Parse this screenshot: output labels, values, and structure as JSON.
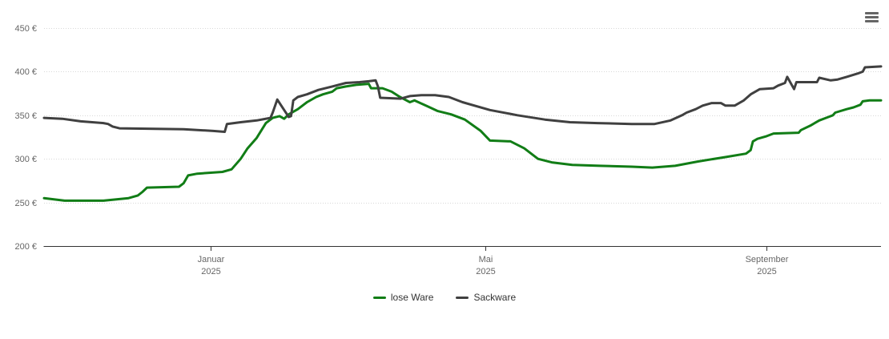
{
  "icons": {
    "menu": "hamburger-icon"
  },
  "legend": {
    "items": [
      "lose Ware",
      "Sackware"
    ]
  },
  "chart_data": {
    "type": "line",
    "title": "",
    "x_type": "datetime",
    "x_domain": [
      "2024-10-20",
      "2025-10-21"
    ],
    "y_domain": [
      200,
      450
    ],
    "y_ticks": [
      200,
      250,
      300,
      350,
      400,
      450
    ],
    "y_tick_suffix": " €",
    "grid": "horizontal dotted",
    "legend_position": "bottom-center",
    "x_ticks": [
      {
        "date": "2025-01-01",
        "label": "Januar",
        "sublabel": "2025"
      },
      {
        "date": "2025-05-01",
        "label": "Mai",
        "sublabel": "2025"
      },
      {
        "date": "2025-09-01",
        "label": "September",
        "sublabel": "2025"
      }
    ],
    "colors": {
      "grid": "#d8d8d8",
      "axis_line": "#333333",
      "axis_label": "#666666",
      "menu_icon": "#666666",
      "background": "#ffffff"
    },
    "series": [
      {
        "name": "lose Ware",
        "color": "#117d16",
        "points": [
          [
            "2024-10-20",
            255
          ],
          [
            "2024-10-29",
            252
          ],
          [
            "2024-11-15",
            252
          ],
          [
            "2024-11-26",
            255
          ],
          [
            "2024-11-30",
            258
          ],
          [
            "2024-12-02",
            262
          ],
          [
            "2024-12-04",
            267
          ],
          [
            "2024-12-18",
            268
          ],
          [
            "2024-12-20",
            272
          ],
          [
            "2024-12-22",
            281
          ],
          [
            "2024-12-26",
            283
          ],
          [
            "2025-01-06",
            285
          ],
          [
            "2025-01-10",
            288
          ],
          [
            "2025-01-14",
            300
          ],
          [
            "2025-01-17",
            312
          ],
          [
            "2025-01-21",
            324
          ],
          [
            "2025-01-25",
            341
          ],
          [
            "2025-01-28",
            347
          ],
          [
            "2025-01-31",
            349
          ],
          [
            "2025-02-02",
            346
          ],
          [
            "2025-02-04",
            351
          ],
          [
            "2025-02-08",
            357
          ],
          [
            "2025-02-12",
            365
          ],
          [
            "2025-02-16",
            371
          ],
          [
            "2025-02-19",
            374
          ],
          [
            "2025-02-23",
            377
          ],
          [
            "2025-02-25",
            381
          ],
          [
            "2025-03-01",
            383
          ],
          [
            "2025-03-06",
            385
          ],
          [
            "2025-03-11",
            386
          ],
          [
            "2025-03-12",
            381
          ],
          [
            "2025-03-17",
            381
          ],
          [
            "2025-03-21",
            377
          ],
          [
            "2025-03-24",
            372
          ],
          [
            "2025-03-26",
            369
          ],
          [
            "2025-03-29",
            365
          ],
          [
            "2025-03-31",
            367
          ],
          [
            "2025-04-05",
            361
          ],
          [
            "2025-04-10",
            355
          ],
          [
            "2025-04-16",
            351
          ],
          [
            "2025-04-22",
            345
          ],
          [
            "2025-04-29",
            332
          ],
          [
            "2025-05-03",
            321
          ],
          [
            "2025-05-12",
            320
          ],
          [
            "2025-05-18",
            312
          ],
          [
            "2025-05-24",
            300
          ],
          [
            "2025-05-30",
            296
          ],
          [
            "2025-06-08",
            293
          ],
          [
            "2025-06-20",
            292
          ],
          [
            "2025-07-04",
            291
          ],
          [
            "2025-07-13",
            290
          ],
          [
            "2025-07-23",
            292
          ],
          [
            "2025-08-02",
            297
          ],
          [
            "2025-08-14",
            302
          ],
          [
            "2025-08-23",
            306
          ],
          [
            "2025-08-25",
            310
          ],
          [
            "2025-08-26",
            320
          ],
          [
            "2025-08-28",
            323
          ],
          [
            "2025-09-01",
            326
          ],
          [
            "2025-09-04",
            329
          ],
          [
            "2025-09-15",
            330
          ],
          [
            "2025-09-16",
            333
          ],
          [
            "2025-09-20",
            338
          ],
          [
            "2025-09-24",
            344
          ],
          [
            "2025-09-28",
            348
          ],
          [
            "2025-09-30",
            350
          ],
          [
            "2025-10-01",
            353
          ],
          [
            "2025-10-06",
            357
          ],
          [
            "2025-10-09",
            359
          ],
          [
            "2025-10-12",
            362
          ],
          [
            "2025-10-13",
            366
          ],
          [
            "2025-10-16",
            367
          ],
          [
            "2025-10-21",
            367
          ]
        ]
      },
      {
        "name": "Sackware",
        "color": "#404040",
        "points": [
          [
            "2024-10-20",
            347
          ],
          [
            "2024-10-28",
            346
          ],
          [
            "2024-11-05",
            343
          ],
          [
            "2024-11-15",
            341
          ],
          [
            "2024-11-17",
            340
          ],
          [
            "2024-11-19",
            337
          ],
          [
            "2024-11-22",
            335
          ],
          [
            "2024-12-20",
            334
          ],
          [
            "2025-01-02",
            332
          ],
          [
            "2025-01-07",
            331
          ],
          [
            "2025-01-08",
            340
          ],
          [
            "2025-01-14",
            342
          ],
          [
            "2025-01-21",
            344
          ],
          [
            "2025-01-27",
            347
          ],
          [
            "2025-01-28",
            353
          ],
          [
            "2025-01-30",
            368
          ],
          [
            "2025-02-02",
            356
          ],
          [
            "2025-02-04",
            348
          ],
          [
            "2025-02-05",
            349
          ],
          [
            "2025-02-06",
            367
          ],
          [
            "2025-02-08",
            371
          ],
          [
            "2025-02-12",
            374
          ],
          [
            "2025-02-17",
            379
          ],
          [
            "2025-02-23",
            383
          ],
          [
            "2025-03-01",
            387
          ],
          [
            "2025-03-07",
            388
          ],
          [
            "2025-03-11",
            389
          ],
          [
            "2025-03-14",
            390
          ],
          [
            "2025-03-15",
            383
          ],
          [
            "2025-03-16",
            370
          ],
          [
            "2025-03-25",
            369
          ],
          [
            "2025-03-29",
            372
          ],
          [
            "2025-04-03",
            373
          ],
          [
            "2025-04-09",
            373
          ],
          [
            "2025-04-15",
            371
          ],
          [
            "2025-04-21",
            365
          ],
          [
            "2025-05-03",
            356
          ],
          [
            "2025-05-15",
            350
          ],
          [
            "2025-05-27",
            345
          ],
          [
            "2025-06-07",
            342
          ],
          [
            "2025-06-19",
            341
          ],
          [
            "2025-07-04",
            340
          ],
          [
            "2025-07-14",
            340
          ],
          [
            "2025-07-21",
            344
          ],
          [
            "2025-07-26",
            350
          ],
          [
            "2025-07-28",
            353
          ],
          [
            "2025-08-01",
            357
          ],
          [
            "2025-08-04",
            361
          ],
          [
            "2025-08-08",
            364
          ],
          [
            "2025-08-12",
            364
          ],
          [
            "2025-08-14",
            361
          ],
          [
            "2025-08-18",
            361
          ],
          [
            "2025-08-22",
            367
          ],
          [
            "2025-08-25",
            374
          ],
          [
            "2025-08-29",
            380
          ],
          [
            "2025-09-04",
            381
          ],
          [
            "2025-09-06",
            384
          ],
          [
            "2025-09-09",
            387
          ],
          [
            "2025-09-10",
            394
          ],
          [
            "2025-09-13",
            380
          ],
          [
            "2025-09-14",
            388
          ],
          [
            "2025-09-23",
            388
          ],
          [
            "2025-09-24",
            393
          ],
          [
            "2025-09-29",
            390
          ],
          [
            "2025-10-02",
            391
          ],
          [
            "2025-10-06",
            394
          ],
          [
            "2025-10-11",
            398
          ],
          [
            "2025-10-13",
            400
          ],
          [
            "2025-10-14",
            405
          ],
          [
            "2025-10-21",
            406
          ]
        ]
      }
    ]
  }
}
